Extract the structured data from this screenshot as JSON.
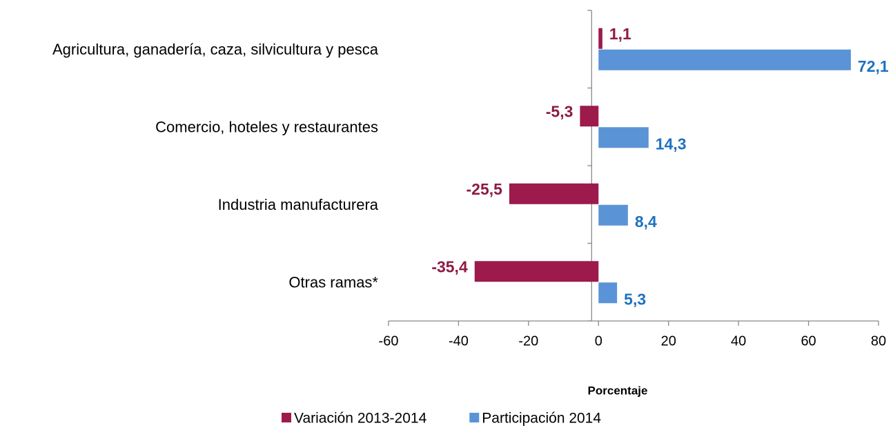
{
  "chart_data": {
    "type": "hbar",
    "categories": [
      "Agricultura, ganadería, caza, silvicultura y pesca",
      "Comercio, hoteles y restaurantes",
      "Industria manufacturera",
      "Otras ramas*"
    ],
    "series": [
      {
        "name": "Variación 2013-2014",
        "color": "#9c1a4c",
        "label_color": "#8e1a45",
        "values": [
          1.1,
          -5.3,
          -25.5,
          -35.4
        ],
        "value_labels": [
          "1,1",
          "-5,3",
          "-25,5",
          "-35,4"
        ]
      },
      {
        "name": "Participación 2014",
        "color": "#5b93d7",
        "label_color": "#1f72c0",
        "values": [
          72.1,
          14.3,
          8.4,
          5.3
        ],
        "value_labels": [
          "72,1",
          "14,3",
          "8,4",
          "5,3"
        ]
      }
    ],
    "xlabel": "Porcentaje",
    "xlim": [
      -60,
      80
    ],
    "xticks": [
      -60,
      -40,
      -20,
      0,
      20,
      40,
      60,
      80
    ],
    "legend": "bottom"
  }
}
